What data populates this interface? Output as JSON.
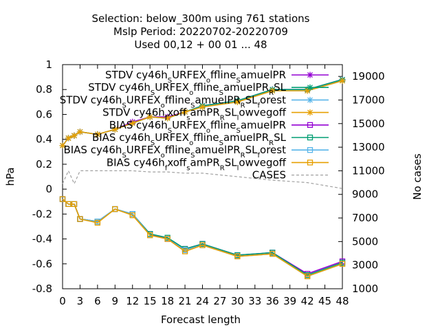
{
  "title_lines": [
    "Selection: below_300m using   761 stations",
    "Mslp   Period: 20220702-20220709",
    "Used  00,12  + 00 01 ... 48"
  ],
  "chart_data": {
    "type": "line",
    "xlabel": "Forecast length",
    "ylabel": "hPa",
    "y2label": "No cases",
    "xlim": [
      0,
      48
    ],
    "ylim": [
      -0.8,
      1.0
    ],
    "y2lim": [
      1000,
      20000
    ],
    "x_ticks": [
      0,
      3,
      6,
      9,
      12,
      15,
      18,
      21,
      24,
      27,
      30,
      33,
      36,
      39,
      42,
      45,
      48
    ],
    "y_ticks": [
      -0.8,
      -0.6,
      -0.4,
      -0.2,
      0,
      0.2,
      0.4,
      0.6,
      0.8,
      1
    ],
    "y2_ticks": [
      1000,
      3000,
      5000,
      7000,
      9000,
      11000,
      13000,
      15000,
      17000,
      19000
    ],
    "x": [
      0,
      1,
      2,
      3,
      6,
      9,
      12,
      15,
      18,
      21,
      24,
      30,
      36,
      42,
      48
    ],
    "legend_position": "top-right, inside",
    "grid": false,
    "series": [
      {
        "name": "STDV cy46h_SURFEX_offline_SamuelPR",
        "kind": "stdv",
        "color": "#9400d3",
        "marker": "star",
        "values": [
          0.35,
          0.41,
          0.43,
          0.46,
          0.44,
          0.48,
          0.54,
          0.58,
          0.58,
          0.62,
          0.67,
          0.71,
          0.8,
          0.8,
          0.88
        ]
      },
      {
        "name": "STDV cy46h_SURFEX_offline_SamuelPR_RSL",
        "kind": "stdv",
        "color": "#009e73",
        "marker": "star",
        "values": [
          0.35,
          0.41,
          0.43,
          0.46,
          0.44,
          0.48,
          0.53,
          0.58,
          0.57,
          0.62,
          0.67,
          0.71,
          0.8,
          0.8,
          0.88
        ]
      },
      {
        "name": "STDV cy46h_SURFEX_offline_SamuelPR_RSL_forest",
        "kind": "stdv",
        "color": "#56b4e9",
        "marker": "star",
        "values": [
          0.35,
          0.41,
          0.43,
          0.46,
          0.44,
          0.48,
          0.53,
          0.58,
          0.57,
          0.62,
          0.66,
          0.7,
          0.79,
          0.79,
          0.87
        ]
      },
      {
        "name": "STDV cy46h_fxoff_samPR_RSL_lowvegoff",
        "kind": "stdv",
        "color": "#e69f00",
        "marker": "star",
        "values": [
          0.35,
          0.41,
          0.43,
          0.46,
          0.44,
          0.48,
          0.53,
          0.58,
          0.57,
          0.62,
          0.66,
          0.7,
          0.79,
          0.79,
          0.87
        ]
      },
      {
        "name": "BIAS cy46h_SURFEX_offline_SamuelPR",
        "kind": "bias",
        "color": "#9400d3",
        "marker": "square",
        "values": [
          -0.08,
          -0.12,
          -0.12,
          -0.24,
          -0.26,
          -0.16,
          -0.2,
          -0.36,
          -0.4,
          -0.48,
          -0.44,
          -0.53,
          -0.51,
          -0.68,
          -0.58
        ]
      },
      {
        "name": "BIAS cy46h_SURFEX_offline_SamuelPR_RSL",
        "kind": "bias",
        "color": "#009e73",
        "marker": "square",
        "values": [
          -0.08,
          -0.12,
          -0.12,
          -0.24,
          -0.26,
          -0.16,
          -0.2,
          -0.36,
          -0.39,
          -0.48,
          -0.44,
          -0.53,
          -0.51,
          -0.69,
          -0.59
        ]
      },
      {
        "name": "BIAS cy46h_SURFEX_offline_SamuelPR_RSL_forest",
        "kind": "bias",
        "color": "#56b4e9",
        "marker": "square",
        "values": [
          -0.08,
          -0.12,
          -0.12,
          -0.24,
          -0.26,
          -0.16,
          -0.2,
          -0.37,
          -0.4,
          -0.49,
          -0.45,
          -0.54,
          -0.52,
          -0.7,
          -0.6
        ]
      },
      {
        "name": "BIAS cy46h_fxoff_samPR_RSL_lowvegoff",
        "kind": "bias",
        "color": "#e69f00",
        "marker": "square",
        "values": [
          -0.08,
          -0.12,
          -0.12,
          -0.24,
          -0.27,
          -0.16,
          -0.21,
          -0.37,
          -0.4,
          -0.5,
          -0.45,
          -0.54,
          -0.52,
          -0.7,
          -0.6
        ]
      },
      {
        "name": "CASES",
        "kind": "cases",
        "axis": "y2",
        "color": "#a0a0a0",
        "dashed": true,
        "values": [
          9900,
          11000,
          9900,
          11000,
          11000,
          11000,
          11000,
          10900,
          10900,
          10800,
          10800,
          10500,
          10200,
          10000,
          9500
        ]
      }
    ]
  }
}
